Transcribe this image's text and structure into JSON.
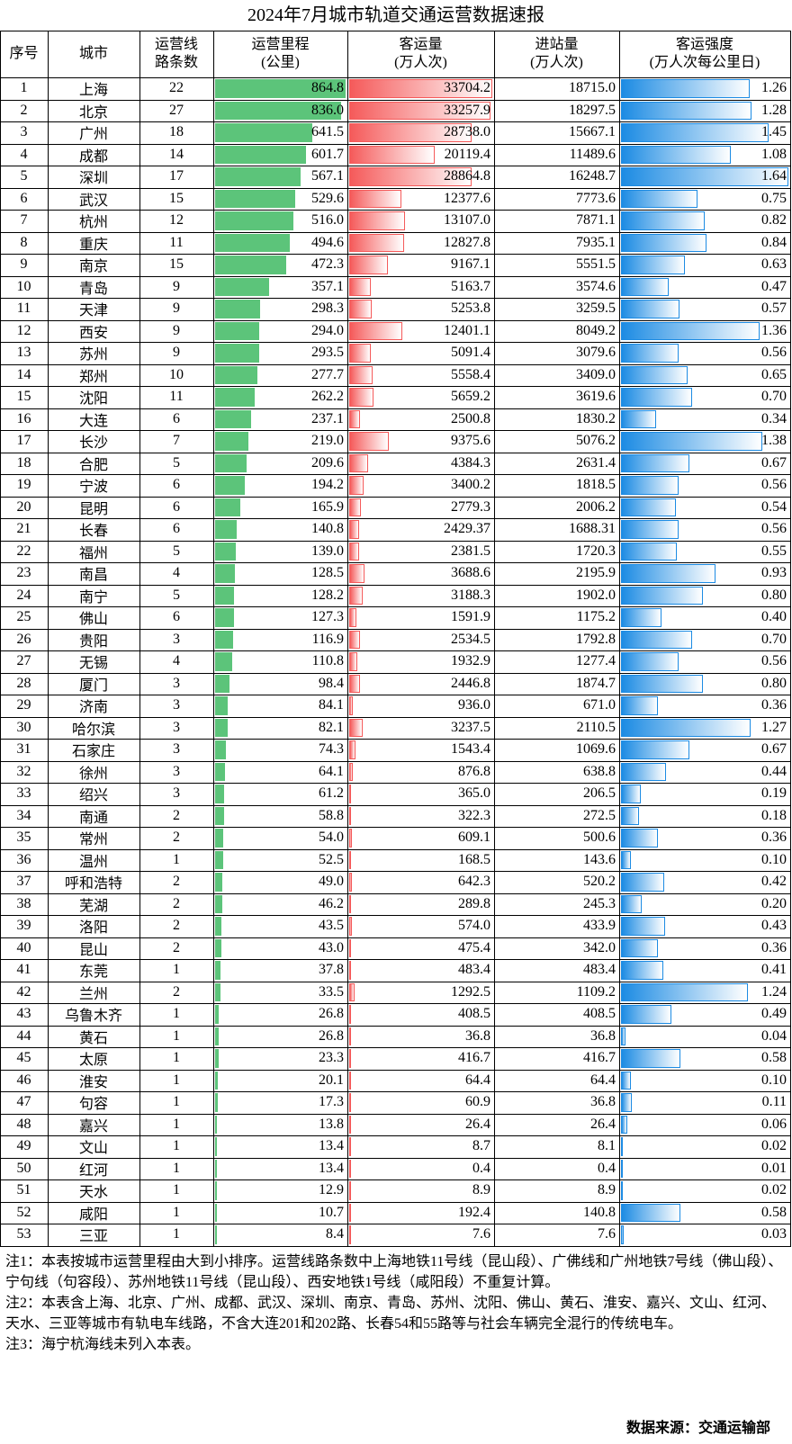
{
  "title": "2024年7月城市轨道交通运营数据速报",
  "headers": [
    [
      "序号"
    ],
    [
      "城市"
    ],
    [
      "运营线",
      "路条数"
    ],
    [
      "运营里程",
      "(公里)"
    ],
    [
      "客运量",
      "(万人次)"
    ],
    [
      "进站量",
      "(万人次)"
    ],
    [
      "客运强度",
      "(万人次每公里日)"
    ]
  ],
  "rows": [
    [
      "1",
      "上海",
      "22",
      "864.8",
      "33704.2",
      "18715.0",
      "1.26"
    ],
    [
      "2",
      "北京",
      "27",
      "836.0",
      "33257.9",
      "18297.5",
      "1.28"
    ],
    [
      "3",
      "广州",
      "18",
      "641.5",
      "28738.0",
      "15667.1",
      "1.45"
    ],
    [
      "4",
      "成都",
      "14",
      "601.7",
      "20119.4",
      "11489.6",
      "1.08"
    ],
    [
      "5",
      "深圳",
      "17",
      "567.1",
      "28864.8",
      "16248.7",
      "1.64"
    ],
    [
      "6",
      "武汉",
      "15",
      "529.6",
      "12377.6",
      "7773.6",
      "0.75"
    ],
    [
      "7",
      "杭州",
      "12",
      "516.0",
      "13107.0",
      "7871.1",
      "0.82"
    ],
    [
      "8",
      "重庆",
      "11",
      "494.6",
      "12827.8",
      "7935.1",
      "0.84"
    ],
    [
      "9",
      "南京",
      "15",
      "472.3",
      "9167.1",
      "5551.5",
      "0.63"
    ],
    [
      "10",
      "青岛",
      "9",
      "357.1",
      "5163.7",
      "3574.6",
      "0.47"
    ],
    [
      "11",
      "天津",
      "9",
      "298.3",
      "5253.8",
      "3259.5",
      "0.57"
    ],
    [
      "12",
      "西安",
      "9",
      "294.0",
      "12401.1",
      "8049.2",
      "1.36"
    ],
    [
      "13",
      "苏州",
      "9",
      "293.5",
      "5091.4",
      "3079.6",
      "0.56"
    ],
    [
      "14",
      "郑州",
      "10",
      "277.7",
      "5558.4",
      "3409.0",
      "0.65"
    ],
    [
      "15",
      "沈阳",
      "11",
      "262.2",
      "5659.2",
      "3619.6",
      "0.70"
    ],
    [
      "16",
      "大连",
      "6",
      "237.1",
      "2500.8",
      "1830.2",
      "0.34"
    ],
    [
      "17",
      "长沙",
      "7",
      "219.0",
      "9375.6",
      "5076.2",
      "1.38"
    ],
    [
      "18",
      "合肥",
      "5",
      "209.6",
      "4384.3",
      "2631.4",
      "0.67"
    ],
    [
      "19",
      "宁波",
      "6",
      "194.2",
      "3400.2",
      "1818.5",
      "0.56"
    ],
    [
      "20",
      "昆明",
      "6",
      "165.9",
      "2779.3",
      "2006.2",
      "0.54"
    ],
    [
      "21",
      "长春",
      "6",
      "140.8",
      "2429.37",
      "1688.31",
      "0.56"
    ],
    [
      "22",
      "福州",
      "5",
      "139.0",
      "2381.5",
      "1720.3",
      "0.55"
    ],
    [
      "23",
      "南昌",
      "4",
      "128.5",
      "3688.6",
      "2195.9",
      "0.93"
    ],
    [
      "24",
      "南宁",
      "5",
      "128.2",
      "3188.3",
      "1902.0",
      "0.80"
    ],
    [
      "25",
      "佛山",
      "6",
      "127.3",
      "1591.9",
      "1175.2",
      "0.40"
    ],
    [
      "26",
      "贵阳",
      "3",
      "116.9",
      "2534.5",
      "1792.8",
      "0.70"
    ],
    [
      "27",
      "无锡",
      "4",
      "110.8",
      "1932.9",
      "1277.4",
      "0.56"
    ],
    [
      "28",
      "厦门",
      "3",
      "98.4",
      "2446.8",
      "1874.7",
      "0.80"
    ],
    [
      "29",
      "济南",
      "3",
      "84.1",
      "936.0",
      "671.0",
      "0.36"
    ],
    [
      "30",
      "哈尔滨",
      "3",
      "82.1",
      "3237.5",
      "2110.5",
      "1.27"
    ],
    [
      "31",
      "石家庄",
      "3",
      "74.3",
      "1543.4",
      "1069.6",
      "0.67"
    ],
    [
      "32",
      "徐州",
      "3",
      "64.1",
      "876.8",
      "638.8",
      "0.44"
    ],
    [
      "33",
      "绍兴",
      "3",
      "61.2",
      "365.0",
      "206.5",
      "0.19"
    ],
    [
      "34",
      "南通",
      "2",
      "58.8",
      "322.3",
      "272.5",
      "0.18"
    ],
    [
      "35",
      "常州",
      "2",
      "54.0",
      "609.1",
      "500.6",
      "0.36"
    ],
    [
      "36",
      "温州",
      "1",
      "52.5",
      "168.5",
      "143.6",
      "0.10"
    ],
    [
      "37",
      "呼和浩特",
      "2",
      "49.0",
      "642.3",
      "520.2",
      "0.42"
    ],
    [
      "38",
      "芜湖",
      "2",
      "46.2",
      "289.8",
      "245.3",
      "0.20"
    ],
    [
      "39",
      "洛阳",
      "2",
      "43.5",
      "574.0",
      "433.9",
      "0.43"
    ],
    [
      "40",
      "昆山",
      "2",
      "43.0",
      "475.4",
      "342.0",
      "0.36"
    ],
    [
      "41",
      "东莞",
      "1",
      "37.8",
      "483.4",
      "483.4",
      "0.41"
    ],
    [
      "42",
      "兰州",
      "2",
      "33.5",
      "1292.5",
      "1109.2",
      "1.24"
    ],
    [
      "43",
      "乌鲁木齐",
      "1",
      "26.8",
      "408.5",
      "408.5",
      "0.49"
    ],
    [
      "44",
      "黄石",
      "1",
      "26.8",
      "36.8",
      "36.8",
      "0.04"
    ],
    [
      "45",
      "太原",
      "1",
      "23.3",
      "416.7",
      "416.7",
      "0.58"
    ],
    [
      "46",
      "淮安",
      "1",
      "20.1",
      "64.4",
      "64.4",
      "0.10"
    ],
    [
      "47",
      "句容",
      "1",
      "17.3",
      "60.9",
      "36.8",
      "0.11"
    ],
    [
      "48",
      "嘉兴",
      "1",
      "13.8",
      "26.4",
      "26.4",
      "0.06"
    ],
    [
      "49",
      "文山",
      "1",
      "13.4",
      "8.7",
      "8.1",
      "0.02"
    ],
    [
      "50",
      "红河",
      "1",
      "13.4",
      "0.4",
      "0.4",
      "0.01"
    ],
    [
      "51",
      "天水",
      "1",
      "12.9",
      "8.9",
      "8.9",
      "0.02"
    ],
    [
      "52",
      "咸阳",
      "1",
      "10.7",
      "192.4",
      "140.8",
      "0.58"
    ],
    [
      "53",
      "三亚",
      "1",
      "8.4",
      "7.6",
      "7.6",
      "0.03"
    ]
  ],
  "notes": [
    "注1：本表按城市运营里程由大到小排序。运营线路条数中上海地铁11号线（昆山段）、广佛线和广州地铁7号线（佛山段）、宁句线（句容段）、苏州地铁11号线（昆山段）、西安地铁1号线（咸阳段）不重复计算。",
    "注2：本表含上海、北京、广州、成都、武汉、深圳、南京、青岛、苏州、沈阳、佛山、黄石、淮安、嘉兴、文山、红河、天水、三亚等城市有轨电车线路，不含大连201和202路、长春54和55路等与社会车辆完全混行的传统电车。",
    "注3：海宁杭海线未列入本表。"
  ],
  "source": "数据来源：交通运输部"
}
